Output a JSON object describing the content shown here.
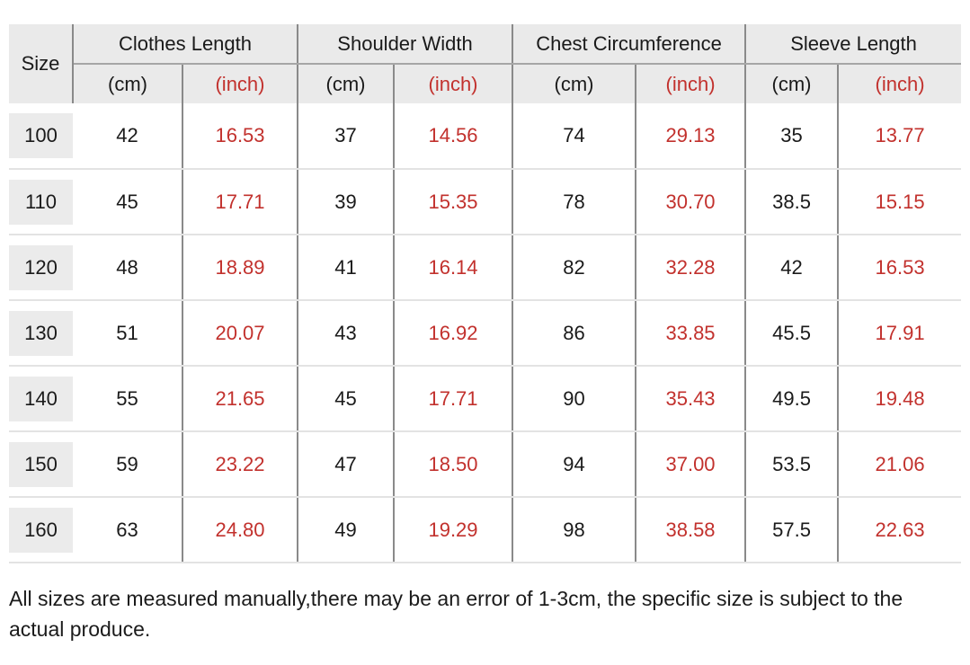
{
  "table": {
    "size_header": "Size",
    "unit_cm": "(cm)",
    "unit_inch": "(inch)",
    "groups": [
      {
        "label": "Clothes Length"
      },
      {
        "label": "Shoulder Width"
      },
      {
        "label": "Chest Circumference"
      },
      {
        "label": "Sleeve Length"
      }
    ],
    "rows": [
      {
        "size": "100",
        "values": [
          "42",
          "16.53",
          "37",
          "14.56",
          "74",
          "29.13",
          "35",
          "13.77"
        ]
      },
      {
        "size": "110",
        "values": [
          "45",
          "17.71",
          "39",
          "15.35",
          "78",
          "30.70",
          "38.5",
          "15.15"
        ]
      },
      {
        "size": "120",
        "values": [
          "48",
          "18.89",
          "41",
          "16.14",
          "82",
          "32.28",
          "42",
          "16.53"
        ]
      },
      {
        "size": "130",
        "values": [
          "51",
          "20.07",
          "43",
          "16.92",
          "86",
          "33.85",
          "45.5",
          "17.91"
        ]
      },
      {
        "size": "140",
        "values": [
          "55",
          "21.65",
          "45",
          "17.71",
          "90",
          "35.43",
          "49.5",
          "19.48"
        ]
      },
      {
        "size": "150",
        "values": [
          "59",
          "23.22",
          "47",
          "18.50",
          "94",
          "37.00",
          "53.5",
          "21.06"
        ]
      },
      {
        "size": "160",
        "values": [
          "63",
          "24.80",
          "49",
          "19.29",
          "98",
          "38.58",
          "57.5",
          "22.63"
        ]
      }
    ]
  },
  "footnote": "All sizes are measured manually,there may be an error of 1-3cm, the specific size is subject to the actual produce.",
  "colors": {
    "inch_accent_red": "#c2312d",
    "text": "#1a1a1a",
    "header_background": "#eaeaea",
    "size_cell_background": "#ebebeb",
    "grid_line_dark": "#8a8a8a",
    "grid_line_light": "#e3e3e3"
  },
  "chart_data": {
    "type": "table",
    "title": "",
    "columns": [
      "Size",
      "Clothes Length (cm)",
      "Clothes Length (inch)",
      "Shoulder Width (cm)",
      "Shoulder Width (inch)",
      "Chest Circumference (cm)",
      "Chest Circumference (inch)",
      "Sleeve Length (cm)",
      "Sleeve Length (inch)"
    ],
    "rows": [
      [
        "100",
        42,
        16.53,
        37,
        14.56,
        74,
        29.13,
        35,
        13.77
      ],
      [
        "110",
        45,
        17.71,
        39,
        15.35,
        78,
        30.7,
        38.5,
        15.15
      ],
      [
        "120",
        48,
        18.89,
        41,
        16.14,
        82,
        32.28,
        42,
        16.53
      ],
      [
        "130",
        51,
        20.07,
        43,
        16.92,
        86,
        33.85,
        45.5,
        17.91
      ],
      [
        "140",
        55,
        21.65,
        45,
        17.71,
        90,
        35.43,
        49.5,
        19.48
      ],
      [
        "150",
        59,
        23.22,
        47,
        18.5,
        94,
        37.0,
        53.5,
        21.06
      ],
      [
        "160",
        63,
        24.8,
        49,
        19.29,
        98,
        38.58,
        57.5,
        22.63
      ]
    ],
    "footnote": "All sizes are measured manually,there may be an error of 1-3cm, the specific size is subject to the actual produce."
  }
}
